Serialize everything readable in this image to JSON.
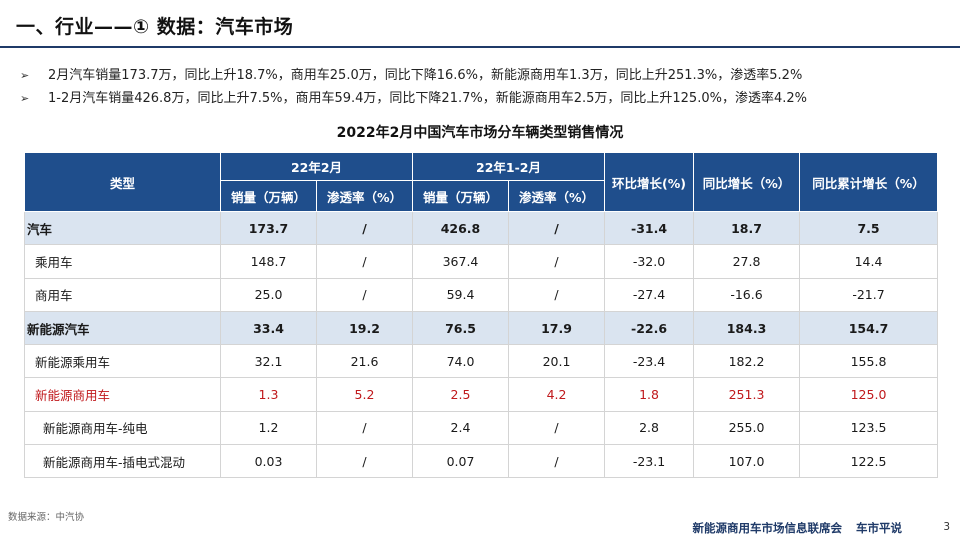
{
  "header": {
    "title": "一、行业——① 数据：汽车市场"
  },
  "bullets": [
    {
      "marker": "➢",
      "text": "2月汽车销量173.7万，同比上升18.7%，商用车25.0万，同比下降16.6%，新能源商用车1.3万，同比上升251.3%，渗透率5.2%"
    },
    {
      "marker": "➢",
      "text": "1-2月汽车销量426.8万，同比上升7.5%，商用车59.4万，同比下降21.7%，新能源商用车2.5万，同比上升125.0%，渗透率4.2%"
    }
  ],
  "table": {
    "title": "2022年2月中国汽车市场分车辆类型销售情况",
    "headers": {
      "type": "类型",
      "group_feb": "22年2月",
      "group_jan_feb": "22年1-2月",
      "sales": "销量（万辆）",
      "penetration": "渗透率（%）",
      "mom": "环比增长(%)",
      "yoy": "同比增长（%）",
      "ytd_yoy": "同比累计增长（%）"
    },
    "rows": [
      {
        "cells": [
          "汽车",
          "173.7",
          "/",
          "426.8",
          "/",
          "-31.4",
          "18.7",
          "7.5"
        ]
      },
      {
        "cells": [
          "乘用车",
          "148.7",
          "/",
          "367.4",
          "/",
          "-32.0",
          "27.8",
          "14.4"
        ]
      },
      {
        "cells": [
          "商用车",
          "25.0",
          "/",
          "59.4",
          "/",
          "-27.4",
          "-16.6",
          "-21.7"
        ]
      },
      {
        "cells": [
          "新能源汽车",
          "33.4",
          "19.2",
          "76.5",
          "17.9",
          "-22.6",
          "184.3",
          "154.7"
        ]
      },
      {
        "cells": [
          "新能源乘用车",
          "32.1",
          "21.6",
          "74.0",
          "20.1",
          "-23.4",
          "182.2",
          "155.8"
        ]
      },
      {
        "cells": [
          "新能源商用车",
          "1.3",
          "5.2",
          "2.5",
          "4.2",
          "1.8",
          "251.3",
          "125.0"
        ]
      },
      {
        "cells": [
          "新能源商用车-纯电",
          "1.2",
          "/",
          "2.4",
          "/",
          "2.8",
          "255.0",
          "123.5"
        ]
      },
      {
        "cells": [
          "新能源商用车-插电式混动",
          "0.03",
          "/",
          "0.07",
          "/",
          "-23.1",
          "107.0",
          "122.5"
        ]
      }
    ]
  },
  "footer": {
    "source": "数据来源：中汽协",
    "org": "新能源商用车市场信息联席会",
    "brand": "车市平说",
    "page": "3"
  },
  "colors": {
    "header_bg": "#1f4e8c",
    "highlight_row_bg": "#dae4f0",
    "emphasis_red": "#c0191c",
    "footer_text": "#1f3a68"
  }
}
